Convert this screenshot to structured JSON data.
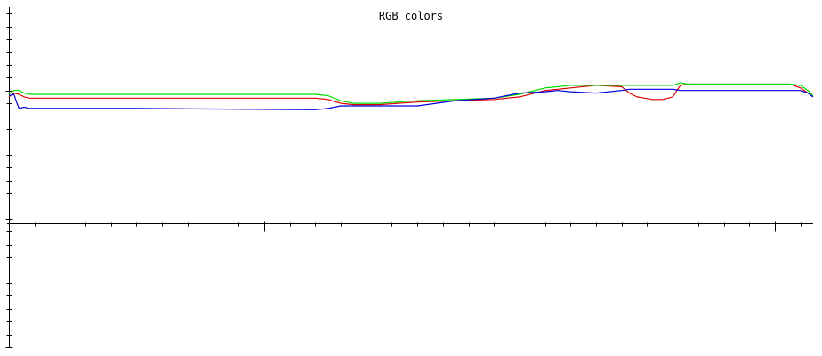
{
  "chart_data": {
    "type": "line",
    "title": "RGB colors",
    "xlabel": "",
    "ylabel": "",
    "xlim": [
      0,
      315
    ],
    "ylim": [
      -1.0,
      1.65
    ],
    "grid": false,
    "legend": "none",
    "series": [
      {
        "color": "#e00000",
        "x": [
          0,
          2,
          4,
          6,
          8,
          120,
          125,
          130,
          135,
          140,
          145,
          160,
          175,
          190,
          200,
          210,
          215,
          220,
          230,
          240,
          243,
          246,
          249,
          252,
          256,
          260,
          263,
          266,
          300,
          306,
          310,
          313,
          315
        ],
        "y": [
          0.95,
          0.98,
          0.97,
          0.95,
          0.94,
          0.94,
          0.93,
          0.9,
          0.89,
          0.89,
          0.89,
          0.91,
          0.92,
          0.93,
          0.95,
          1.0,
          1.01,
          1.02,
          1.04,
          1.03,
          0.98,
          0.95,
          0.94,
          0.93,
          0.93,
          0.95,
          1.04,
          1.05,
          1.05,
          1.05,
          1.02,
          0.98,
          0.95
        ]
      },
      {
        "color": "#00dd00",
        "x": [
          0,
          2,
          4,
          6,
          8,
          120,
          125,
          130,
          135,
          140,
          145,
          160,
          175,
          190,
          200,
          210,
          215,
          220,
          230,
          240,
          243,
          246,
          249,
          252,
          256,
          260,
          263,
          266,
          300,
          306,
          310,
          313,
          315
        ],
        "y": [
          0.97,
          1.0,
          1.0,
          0.98,
          0.97,
          0.97,
          0.96,
          0.92,
          0.9,
          0.9,
          0.9,
          0.92,
          0.93,
          0.94,
          0.97,
          1.02,
          1.03,
          1.04,
          1.04,
          1.04,
          1.04,
          1.04,
          1.04,
          1.04,
          1.04,
          1.04,
          1.06,
          1.05,
          1.05,
          1.05,
          1.04,
          1.0,
          0.96
        ]
      },
      {
        "color": "#0000dd",
        "x": [
          0,
          2,
          3,
          4,
          6,
          8,
          50,
          120,
          125,
          130,
          135,
          140,
          145,
          160,
          175,
          190,
          200,
          210,
          215,
          220,
          230,
          240,
          243,
          246,
          249,
          252,
          256,
          260,
          263,
          266,
          300,
          306,
          310,
          313,
          315
        ],
        "y": [
          0.96,
          0.97,
          0.91,
          0.86,
          0.87,
          0.86,
          0.86,
          0.85,
          0.86,
          0.88,
          0.88,
          0.88,
          0.88,
          0.88,
          0.92,
          0.94,
          0.98,
          0.99,
          1.0,
          0.99,
          0.98,
          1.0,
          1.01,
          1.01,
          1.01,
          1.01,
          1.01,
          1.01,
          1.0,
          1.0,
          1.0,
          1.0,
          1.0,
          0.98,
          0.95
        ]
      }
    ]
  }
}
